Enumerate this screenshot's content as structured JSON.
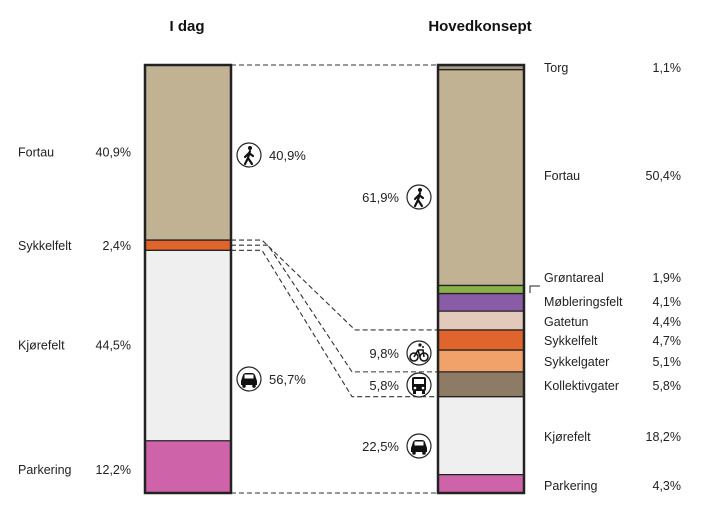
{
  "chart_data": {
    "type": "stacked-bar",
    "columns": [
      {
        "title": "I dag",
        "segments": [
          {
            "name": "Fortau",
            "value": 40.9,
            "label": "40,9%",
            "color": "#c2b294"
          },
          {
            "name": "Sykkelfelt",
            "value": 2.4,
            "label": "2,4%",
            "color": "#e0652c"
          },
          {
            "name": "Kjørefelt",
            "value": 44.5,
            "label": "44,5%",
            "color": "#efefef"
          },
          {
            "name": "Parkering",
            "value": 12.2,
            "label": "12,2%",
            "color": "#cf63aa"
          }
        ],
        "groups": [
          {
            "icon": "pedestrian-icon",
            "label": "40,9%"
          },
          {
            "icon": "car-icon",
            "label": "56,7%"
          }
        ]
      },
      {
        "title": "Hovedkonsept",
        "segments": [
          {
            "name": "Torg",
            "value": 1.1,
            "label": "1,1%",
            "color": "#a39886"
          },
          {
            "name": "Fortau",
            "value": 50.4,
            "label": "50,4%",
            "color": "#c2b294"
          },
          {
            "name": "Grøntareal",
            "value": 1.9,
            "label": "1,9%",
            "color": "#8ab04a"
          },
          {
            "name": "Møbleringsfelt",
            "value": 4.1,
            "label": "4,1%",
            "color": "#8a5ba6"
          },
          {
            "name": "Gatetun",
            "value": 4.4,
            "label": "4,4%",
            "color": "#e3c8bc"
          },
          {
            "name": "Sykkelfelt",
            "value": 4.7,
            "label": "4,7%",
            "color": "#e0652c"
          },
          {
            "name": "Sykkelgater",
            "value": 5.1,
            "label": "5,1%",
            "color": "#f0a26a"
          },
          {
            "name": "Kollektivgater",
            "value": 5.8,
            "label": "5,8%",
            "color": "#8e7b66"
          },
          {
            "name": "Kjørefelt",
            "value": 18.2,
            "label": "18,2%",
            "color": "#efefef"
          },
          {
            "name": "Parkering",
            "value": 4.3,
            "label": "4,3%",
            "color": "#cf63aa"
          }
        ],
        "groups": [
          {
            "icon": "pedestrian-icon",
            "label": "61,9%"
          },
          {
            "icon": "bicycle-icon",
            "label": "9,8%"
          },
          {
            "icon": "bus-icon",
            "label": "5,8%"
          },
          {
            "icon": "car-icon",
            "label": "22,5%"
          }
        ]
      }
    ]
  }
}
